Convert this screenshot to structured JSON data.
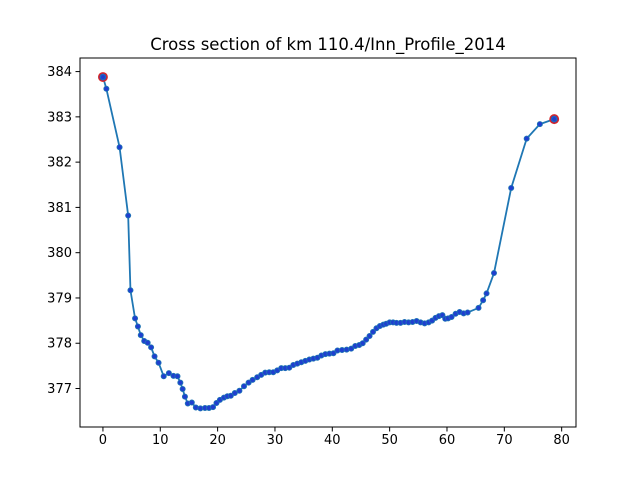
{
  "chart_data": {
    "type": "line",
    "title": "Cross section of km 110.4/Inn_Profile_2014",
    "xlabel": "",
    "ylabel": "",
    "xlim": [
      -4,
      82.5
    ],
    "ylim": [
      376.15,
      384.3
    ],
    "xticks": [
      0,
      10,
      20,
      30,
      40,
      50,
      60,
      70,
      80
    ],
    "yticks": [
      377,
      378,
      379,
      380,
      381,
      382,
      383,
      384
    ],
    "grid": false,
    "legend": null,
    "colors": {
      "line": "#1f77b4",
      "marker_fill": "#1f3fcf",
      "marker_edge": "#1f77b4",
      "endpoint_edge": "#d62728"
    },
    "series": [
      {
        "x": [
          0.0,
          0.6,
          2.9,
          4.4,
          4.8,
          5.6,
          6.1,
          6.6,
          7.2,
          7.8,
          8.4,
          9.0,
          9.7,
          10.6,
          11.5,
          12.3,
          13.0,
          13.5,
          13.9,
          14.3,
          14.8,
          15.5,
          16.2,
          17.0,
          17.8,
          18.5,
          19.2,
          19.8,
          20.4,
          21.1,
          21.7,
          22.3,
          23.0,
          23.8,
          24.6,
          25.4,
          26.1,
          26.9,
          27.6,
          28.3,
          29.0,
          29.7,
          30.4,
          31.1,
          31.8,
          32.5,
          33.2,
          33.9,
          34.6,
          35.3,
          36.0,
          36.7,
          37.4,
          38.1,
          38.8,
          39.5,
          40.2,
          40.9,
          41.7,
          42.5,
          43.3,
          44.0,
          44.7,
          45.3,
          45.9,
          46.5,
          47.1,
          47.7,
          48.3,
          48.9,
          49.4,
          50.0,
          50.6,
          51.2,
          51.9,
          52.6,
          53.3,
          54.0,
          54.7,
          55.4,
          56.1,
          56.8,
          57.4,
          58.0,
          58.6,
          59.2,
          59.7,
          60.2,
          60.8,
          61.5,
          62.2,
          62.9,
          63.6,
          65.5,
          66.3,
          66.9,
          68.2,
          71.2,
          73.9,
          76.2,
          78.7
        ],
        "y": [
          383.88,
          383.62,
          382.33,
          380.82,
          379.17,
          378.55,
          378.37,
          378.18,
          378.05,
          378.01,
          377.91,
          377.71,
          377.57,
          377.27,
          377.34,
          377.28,
          377.27,
          377.13,
          376.99,
          376.82,
          376.67,
          376.69,
          376.58,
          376.56,
          376.57,
          376.57,
          376.59,
          376.68,
          376.75,
          376.8,
          376.83,
          376.84,
          376.9,
          376.95,
          377.05,
          377.13,
          377.19,
          377.25,
          377.3,
          377.35,
          377.36,
          377.36,
          377.4,
          377.45,
          377.45,
          377.46,
          377.52,
          377.55,
          377.58,
          377.61,
          377.64,
          377.66,
          377.68,
          377.73,
          377.76,
          377.77,
          377.78,
          377.84,
          377.85,
          377.86,
          377.88,
          377.94,
          377.96,
          378.0,
          378.08,
          378.16,
          378.25,
          378.33,
          378.38,
          378.41,
          378.43,
          378.46,
          378.46,
          378.45,
          378.45,
          378.47,
          378.46,
          378.47,
          378.49,
          378.46,
          378.44,
          378.46,
          378.5,
          378.56,
          378.6,
          378.62,
          378.54,
          378.55,
          378.58,
          378.65,
          378.69,
          378.66,
          378.68,
          378.78,
          378.95,
          379.1,
          379.55,
          381.43,
          382.52,
          382.84,
          382.95
        ],
        "highlighted_points": [
          {
            "x": 0.0,
            "y": 383.88
          },
          {
            "x": 78.7,
            "y": 382.95
          }
        ]
      }
    ]
  }
}
